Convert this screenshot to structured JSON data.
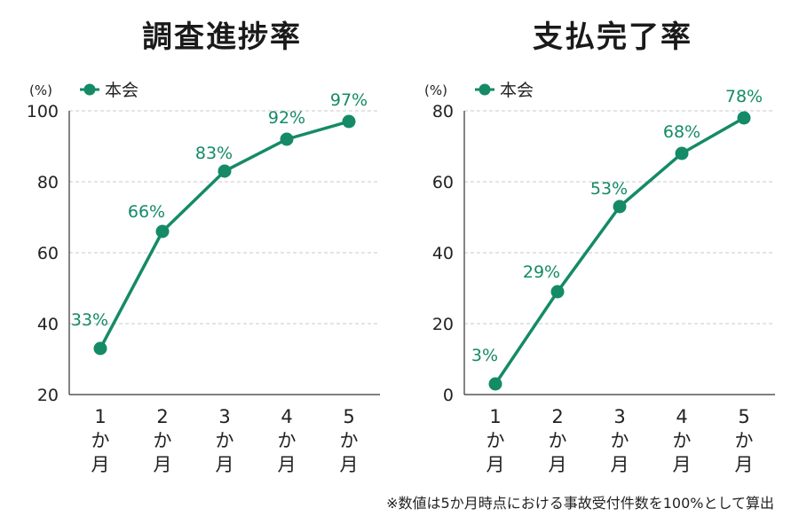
{
  "chart_data": [
    {
      "type": "line",
      "title": "調査進捗率",
      "unit": "(%)",
      "categories": [
        "1\nか\n月",
        "2\nか\n月",
        "3\nか\n月",
        "4\nか\n月",
        "5\nか\n月"
      ],
      "series": [
        {
          "name": "本会",
          "values": [
            33,
            66,
            83,
            92,
            97
          ]
        }
      ],
      "data_labels": [
        "33%",
        "66%",
        "83%",
        "92%",
        "97%"
      ],
      "ylim": [
        20,
        100
      ],
      "yticks": [
        20,
        40,
        60,
        80,
        100
      ],
      "grid": true,
      "legend": "top-left",
      "color": "#158a67"
    },
    {
      "type": "line",
      "title": "支払完了率",
      "unit": "(%)",
      "categories": [
        "1\nか\n月",
        "2\nか\n月",
        "3\nか\n月",
        "4\nか\n月",
        "5\nか\n月"
      ],
      "series": [
        {
          "name": "本会",
          "values": [
            3,
            29,
            53,
            68,
            78
          ]
        }
      ],
      "data_labels": [
        "3%",
        "29%",
        "53%",
        "68%",
        "78%"
      ],
      "ylim": [
        0,
        80
      ],
      "yticks": [
        0,
        20,
        40,
        60,
        80
      ],
      "grid": true,
      "legend": "top-left",
      "color": "#158a67"
    }
  ],
  "footnote": "※数値は5か月時点における事故受付件数を100%として算出"
}
